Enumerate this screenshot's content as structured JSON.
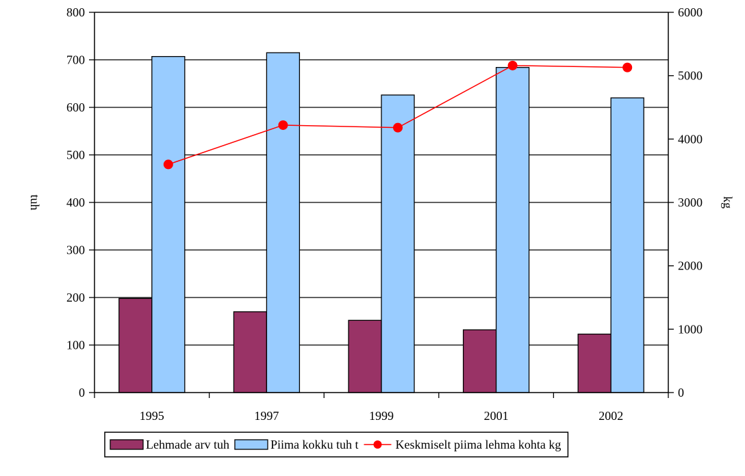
{
  "chart_data": {
    "type": "bar",
    "categories": [
      "1995",
      "1997",
      "1999",
      "2001",
      "2002"
    ],
    "series": [
      {
        "name": "Lehmade arv tuh",
        "kind": "bar",
        "axis": "left",
        "color": "#993366",
        "values": [
          198,
          170,
          152,
          132,
          123
        ]
      },
      {
        "name": "Piima kokku  tuh t",
        "kind": "bar",
        "axis": "left",
        "color": "#99ccff",
        "values": [
          707,
          715,
          626,
          684,
          620
        ]
      },
      {
        "name": "Keskmiselt piima lehma kohta kg",
        "kind": "line",
        "axis": "right",
        "color": "#ff0000",
        "values": [
          3600,
          4220,
          4180,
          5160,
          5130
        ]
      }
    ],
    "ylabel": "tuh",
    "y2label": "kg",
    "ylim": [
      0,
      800
    ],
    "y2lim": [
      0,
      6000
    ],
    "yticks": [
      "0",
      "100",
      "200",
      "300",
      "400",
      "500",
      "600",
      "700",
      "800"
    ],
    "y2ticks": [
      "0",
      "1000",
      "2000",
      "3000",
      "4000",
      "5000",
      "6000"
    ],
    "grid": true,
    "legend_position": "bottom"
  }
}
